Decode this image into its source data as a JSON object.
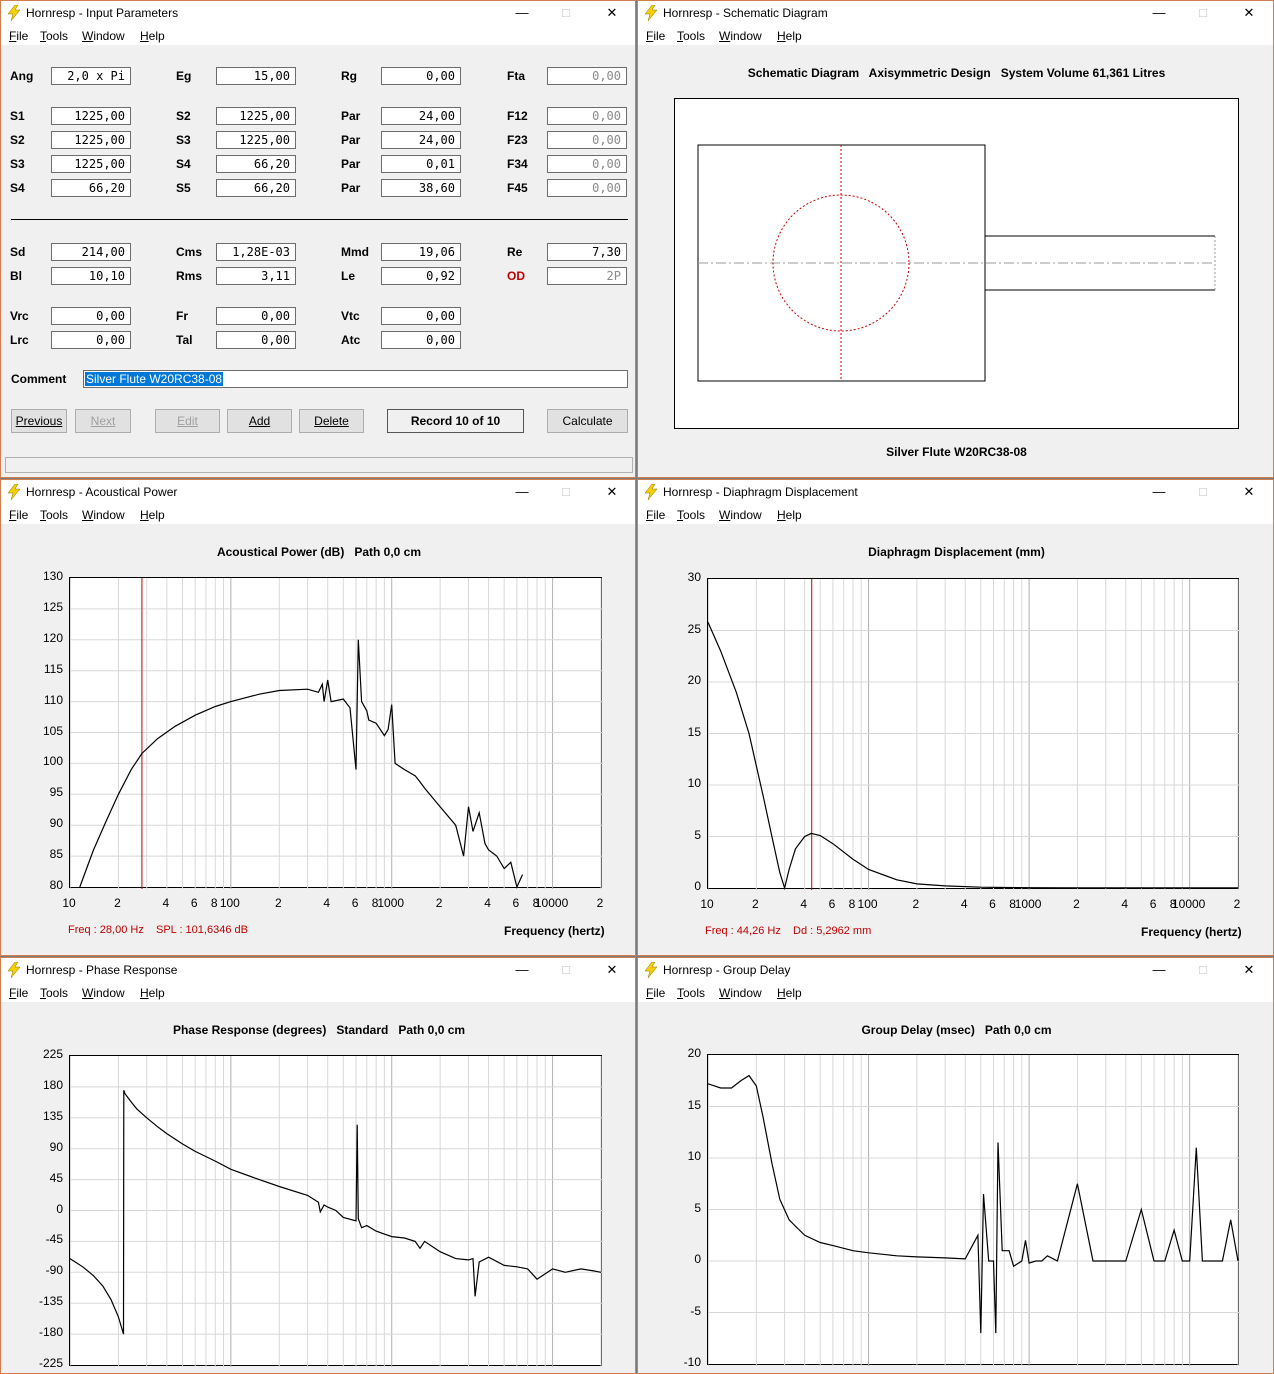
{
  "app": "Hornresp",
  "windows": {
    "input": {
      "title": "Hornresp - Input Parameters"
    },
    "schem": {
      "title": "Hornresp - Schematic Diagram"
    },
    "power": {
      "title": "Hornresp - Acoustical Power"
    },
    "disp": {
      "title": "Hornresp - Diaphragm Displacement"
    },
    "phase": {
      "title": "Hornresp - Phase Response"
    },
    "gd": {
      "title": "Hornresp - Group Delay"
    }
  },
  "menu": [
    "File",
    "Tools",
    "Window",
    "Help"
  ],
  "title_controls": {
    "minimize": "—",
    "maximize": "□",
    "close": "✕"
  },
  "params": {
    "row0": [
      {
        "l": "Ang",
        "v": "2,0 x Pi"
      },
      {
        "l": "Eg",
        "v": "15,00"
      },
      {
        "l": "Rg",
        "v": "0,00"
      },
      {
        "l": "Fta",
        "v": "0,00"
      }
    ],
    "row1": [
      {
        "l": "S1",
        "v": "1225,00"
      },
      {
        "l": "S2",
        "v": "1225,00"
      },
      {
        "l": "Par",
        "v": "24,00"
      },
      {
        "l": "F12",
        "v": "0,00"
      }
    ],
    "row2": [
      {
        "l": "S2",
        "v": "1225,00"
      },
      {
        "l": "S3",
        "v": "1225,00"
      },
      {
        "l": "Par",
        "v": "24,00"
      },
      {
        "l": "F23",
        "v": "0,00"
      }
    ],
    "row3": [
      {
        "l": "S3",
        "v": "1225,00"
      },
      {
        "l": "S4",
        "v": "66,20"
      },
      {
        "l": "Par",
        "v": "0,01"
      },
      {
        "l": "F34",
        "v": "0,00"
      }
    ],
    "row4": [
      {
        "l": "S4",
        "v": "66,20"
      },
      {
        "l": "S5",
        "v": "66,20"
      },
      {
        "l": "Par",
        "v": "38,60"
      },
      {
        "l": "F45",
        "v": "0,00"
      }
    ],
    "row5": [
      {
        "l": "Sd",
        "v": "214,00"
      },
      {
        "l": "Cms",
        "v": "1,28E-03"
      },
      {
        "l": "Mmd",
        "v": "19,06"
      },
      {
        "l": "Re",
        "v": "7,30"
      }
    ],
    "row6": [
      {
        "l": "Bl",
        "v": "10,10"
      },
      {
        "l": "Rms",
        "v": "3,11"
      },
      {
        "l": "Le",
        "v": "0,92"
      },
      {
        "l": "OD",
        "v": "2P"
      }
    ],
    "row7": [
      {
        "l": "Vrc",
        "v": "0,00"
      },
      {
        "l": "Fr",
        "v": "0,00"
      },
      {
        "l": "Vtc",
        "v": "0,00"
      }
    ],
    "row8": [
      {
        "l": "Lrc",
        "v": "0,00"
      },
      {
        "l": "Tal",
        "v": "0,00"
      },
      {
        "l": "Atc",
        "v": "0,00"
      }
    ],
    "comment_label": "Comment",
    "comment": "Silver Flute W20RC38-08"
  },
  "buttons": {
    "previous": "Previous",
    "next": "Next",
    "edit": "Edit",
    "add": "Add",
    "delete": "Delete",
    "record": "Record 10 of 10",
    "calculate": "Calculate"
  },
  "schematic": {
    "header": "Schematic Diagram   Axisymmetric Design   System Volume 61,361 Litres",
    "caption": "Silver Flute W20RC38-08"
  },
  "power": {
    "header": "Acoustical Power (dB)   Path 0,0 cm",
    "cursor_freq": "Freq : 28,00 Hz",
    "cursor_val": "SPL : 101,6346 dB",
    "xlabel": "Frequency (hertz)"
  },
  "disp": {
    "header": "Diaphragm Displacement (mm)",
    "cursor_freq": "Freq : 44,26 Hz",
    "cursor_val": "Dd : 5,2962 mm",
    "xlabel": "Frequency (hertz)"
  },
  "phase": {
    "header": "Phase Response (degrees)   Standard   Path 0,0 cm"
  },
  "gd": {
    "header": "Group Delay (msec)   Path 0,0 cm"
  },
  "x_ticks": [
    "10",
    "2",
    "4",
    "6",
    "8",
    "100",
    "2",
    "4",
    "6",
    "8",
    "1000",
    "2",
    "4",
    "6",
    "8",
    "10000",
    "2"
  ],
  "chart_data": [
    {
      "type": "line",
      "title": "Acoustical Power (dB)   Path 0,0 cm",
      "xlabel": "Frequency (hertz)",
      "ylabel": "",
      "xscale": "log",
      "xlim": [
        10,
        20000
      ],
      "ylim": [
        80,
        130
      ],
      "yticks": [
        "130",
        "125",
        "120",
        "115",
        "110",
        "105",
        "100",
        "95",
        "90",
        "85",
        "80"
      ],
      "cursor_x": 28,
      "series": [
        {
          "x": [
            11.5,
            14,
            17,
            20,
            24,
            28,
            35,
            45,
            60,
            80,
            100,
            150,
            200,
            300,
            350,
            370,
            380,
            400,
            420,
            500,
            550,
            600,
            620,
            650,
            700,
            720,
            800,
            900,
            950,
            1000,
            1050,
            1200,
            1400,
            1500,
            1600,
            2000,
            2500,
            2800,
            3000,
            3200,
            3500,
            3800,
            4000,
            4500,
            5000,
            5500,
            6000,
            6500
          ],
          "y": [
            80,
            86,
            91,
            95,
            99,
            101.6,
            104,
            106,
            107.8,
            109.2,
            110,
            111.2,
            111.8,
            112,
            111.5,
            112.8,
            110,
            113.5,
            110,
            110.4,
            109,
            99,
            120,
            110,
            108.5,
            107,
            106.5,
            104.5,
            105.5,
            109.5,
            100,
            99,
            98,
            97,
            96,
            93,
            90,
            85,
            93,
            89,
            92,
            87,
            86,
            85,
            83,
            84,
            80,
            82
          ]
        }
      ]
    },
    {
      "type": "line",
      "title": "Diaphragm Displacement (mm)",
      "xlabel": "Frequency (hertz)",
      "ylabel": "",
      "xscale": "log",
      "xlim": [
        10,
        20000
      ],
      "ylim": [
        0,
        30
      ],
      "yticks": [
        "30",
        "25",
        "20",
        "15",
        "10",
        "5",
        "0"
      ],
      "cursor_x": 44.26,
      "series": [
        {
          "x": [
            10,
            12,
            15,
            18,
            22,
            25,
            28,
            30,
            32,
            35,
            40,
            44,
            50,
            60,
            80,
            100,
            150,
            200,
            300,
            500,
            700,
            1000,
            2000,
            5000,
            10000,
            20000
          ],
          "y": [
            25.8,
            23,
            19,
            15,
            9,
            5,
            1.5,
            0,
            1.8,
            3.8,
            5.0,
            5.3,
            5.1,
            4.3,
            2.8,
            1.8,
            0.8,
            0.4,
            0.2,
            0.08,
            0.05,
            0.03,
            0.02,
            0.01,
            0.01,
            0.01
          ]
        }
      ]
    },
    {
      "type": "line",
      "title": "Phase Response (degrees)   Standard   Path 0,0 cm",
      "xlabel": "",
      "ylabel": "",
      "xscale": "log",
      "xlim": [
        10,
        20000
      ],
      "ylim": [
        -225,
        225
      ],
      "yticks": [
        "225",
        "180",
        "135",
        "90",
        "45",
        "0",
        "-45",
        "-90",
        "-135",
        "-180",
        "-225"
      ],
      "series": [
        {
          "x": [
            10,
            12,
            14,
            16,
            18,
            20,
            21.5,
            21.6,
            22,
            24,
            26,
            30,
            35,
            40,
            50,
            60,
            80,
            100,
            150,
            200,
            300,
            350,
            360,
            380,
            400,
            450,
            500,
            600,
            610,
            620,
            650,
            700,
            800,
            1000,
            1200,
            1400,
            1500,
            1600,
            2000,
            2500,
            3000,
            3200,
            3300,
            3500,
            4000,
            5000,
            6000,
            7000,
            8000,
            10000,
            12000,
            15000,
            18000,
            20000
          ],
          "y": [
            -70,
            -82,
            -95,
            -110,
            -130,
            -155,
            -180,
            175,
            170,
            158,
            148,
            135,
            122,
            112,
            97,
            86,
            72,
            60,
            45,
            35,
            22,
            12,
            -2,
            8,
            5,
            0,
            -10,
            -15,
            125,
            -12,
            -25,
            -22,
            -30,
            -38,
            -40,
            -45,
            -55,
            -45,
            -60,
            -70,
            -72,
            -70,
            -125,
            -75,
            -68,
            -80,
            -82,
            -85,
            -100,
            -85,
            -90,
            -85,
            -88,
            -90
          ]
        }
      ]
    },
    {
      "type": "line",
      "title": "Group Delay (msec)   Path 0,0 cm",
      "xlabel": "",
      "ylabel": "",
      "xscale": "log",
      "xlim": [
        10,
        20000
      ],
      "ylim": [
        -10,
        20
      ],
      "yticks": [
        "20",
        "15",
        "10",
        "5",
        "0",
        "-5",
        "-10"
      ],
      "series": [
        {
          "x": [
            10,
            12,
            14,
            16,
            18,
            20,
            22,
            25,
            28,
            32,
            36,
            40,
            50,
            60,
            80,
            100,
            150,
            200,
            300,
            400,
            480,
            500,
            520,
            560,
            600,
            620,
            640,
            680,
            750,
            800,
            900,
            950,
            1000,
            1100,
            1200,
            1300,
            1500,
            2000,
            2500,
            3000,
            4000,
            5000,
            6000,
            7000,
            8000,
            9000,
            10000,
            11000,
            12000,
            14000,
            16000,
            18000,
            20000
          ],
          "y": [
            17.2,
            16.8,
            16.8,
            17.5,
            18,
            17,
            14,
            9.5,
            6,
            4,
            3.2,
            2.5,
            1.8,
            1.5,
            1.0,
            0.8,
            0.5,
            0.4,
            0.3,
            0.2,
            2.5,
            -7,
            6.5,
            0,
            0,
            -7,
            11.5,
            1,
            1,
            -0.5,
            0,
            2,
            -0.2,
            0,
            0,
            0.5,
            0,
            7.5,
            0,
            0,
            0,
            5,
            0,
            0,
            3,
            0,
            0,
            11,
            0,
            0,
            0,
            4,
            0
          ]
        }
      ]
    }
  ]
}
